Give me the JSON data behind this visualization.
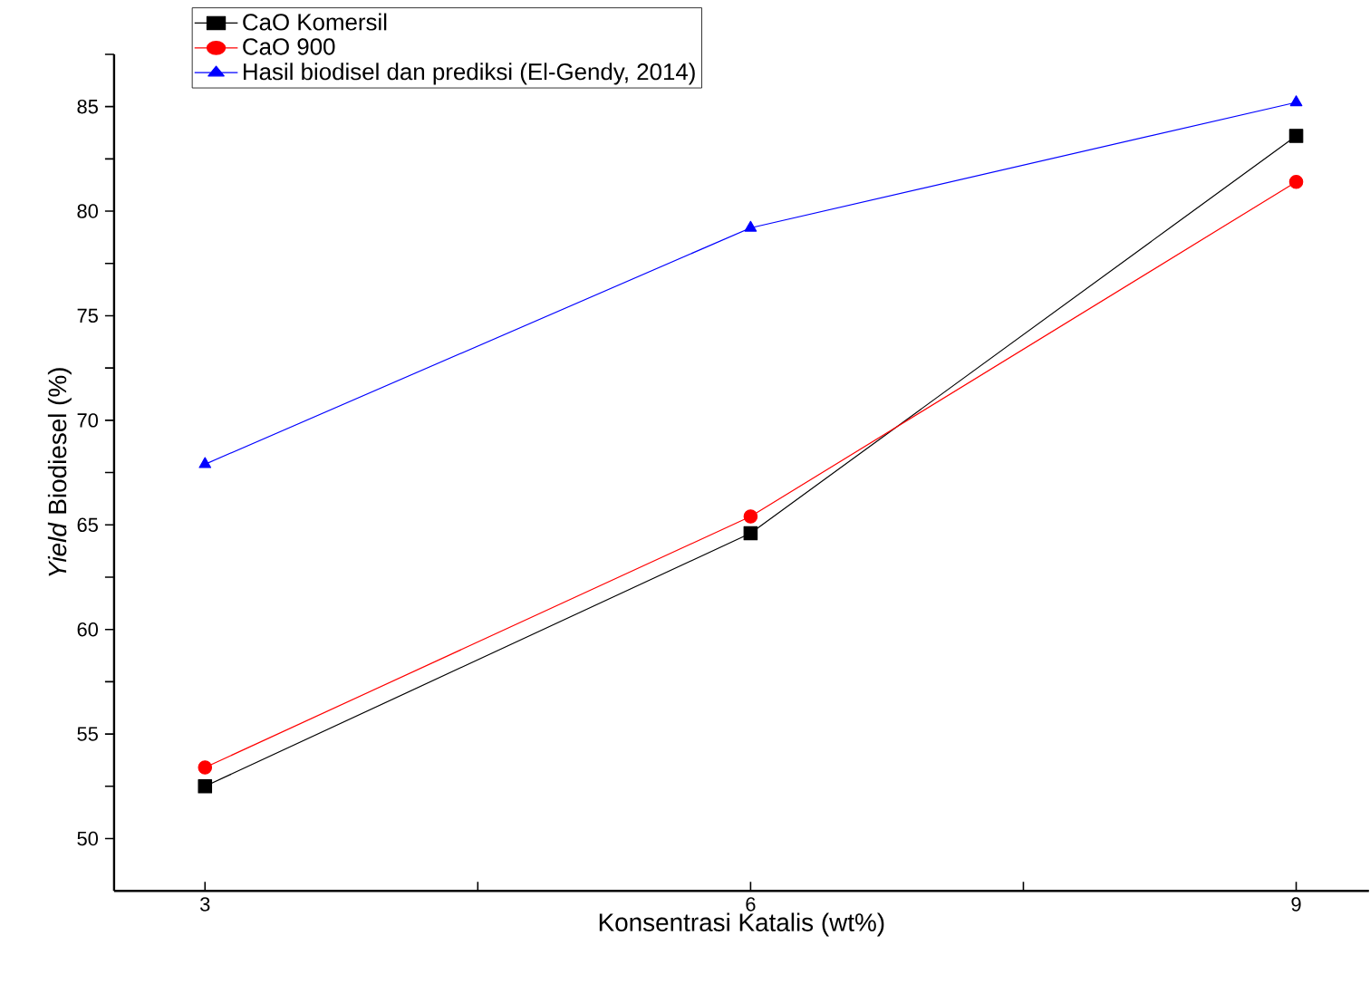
{
  "chart_data": {
    "type": "line",
    "xlabel": "Konsentrasi Katalis (wt%)",
    "ylabel": "*Yield* Biodiesel (%)",
    "x": [
      3,
      6,
      9
    ],
    "series": [
      {
        "name": "CaO Komersil",
        "color": "#000000",
        "marker": "square",
        "values": [
          52.5,
          64.6,
          83.6
        ]
      },
      {
        "name": "CaO 900",
        "color": "#ff0000",
        "marker": "circle",
        "values": [
          53.4,
          65.4,
          81.4
        ]
      },
      {
        "name": "Hasil biodisel dan prediksi (El-Gendy, 2014)",
        "color": "#0000ff",
        "marker": "triangle",
        "values": [
          67.9,
          79.2,
          85.2
        ]
      }
    ],
    "xlim": [
      2.5,
      9.4
    ],
    "xticks": [
      3,
      {
        "value": 4.5,
        "label": null
      },
      6,
      {
        "value": 7.5,
        "label": null
      },
      9
    ],
    "ylim": [
      47.5,
      87.5
    ],
    "yticks": [
      50,
      {
        "value": 52.5,
        "label": null
      },
      55,
      {
        "value": 57.5,
        "label": null
      },
      60,
      {
        "value": 62.5,
        "label": null
      },
      65,
      {
        "value": 67.5,
        "label": null
      },
      70,
      {
        "value": 72.5,
        "label": null
      },
      75,
      {
        "value": 77.5,
        "label": null
      },
      80,
      {
        "value": 82.5,
        "label": null
      },
      85,
      {
        "value": 87.5,
        "label": null
      }
    ],
    "grid": false,
    "legend": "top left",
    "line_style": "solid"
  }
}
